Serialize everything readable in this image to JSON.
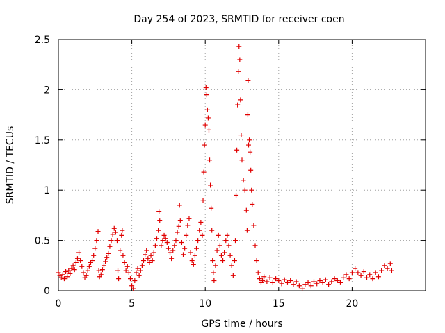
{
  "chart_data": {
    "type": "scatter",
    "title": "Day 254 of 2023, SRMTID for receiver coen",
    "xlabel": "GPS time / hours",
    "ylabel": "SRMTID / TECUs",
    "xlim": [
      0,
      25
    ],
    "ylim": [
      0,
      2.5
    ],
    "xticks": [
      0,
      5,
      10,
      15,
      20
    ],
    "xtick_labels": [
      "0",
      "5",
      "10",
      "15",
      "20"
    ],
    "yticks": [
      0,
      0.5,
      1,
      1.5,
      2,
      2.5
    ],
    "ytick_labels": [
      "0",
      "0.5",
      "1",
      "1.5",
      "2",
      "2.5"
    ],
    "grid": true,
    "marker": "+",
    "series": [
      {
        "name": "SRMTID",
        "color": "#e00000",
        "points": [
          [
            0.0,
            0.18
          ],
          [
            0.1,
            0.15
          ],
          [
            0.2,
            0.13
          ],
          [
            0.3,
            0.16
          ],
          [
            0.4,
            0.12
          ],
          [
            0.5,
            0.19
          ],
          [
            0.6,
            0.14
          ],
          [
            0.7,
            0.2
          ],
          [
            0.8,
            0.17
          ],
          [
            0.9,
            0.22
          ],
          [
            1.0,
            0.25
          ],
          [
            1.1,
            0.21
          ],
          [
            1.2,
            0.28
          ],
          [
            1.3,
            0.32
          ],
          [
            1.4,
            0.38
          ],
          [
            1.5,
            0.3
          ],
          [
            1.6,
            0.24
          ],
          [
            1.7,
            0.18
          ],
          [
            1.8,
            0.13
          ],
          [
            1.9,
            0.15
          ],
          [
            2.0,
            0.2
          ],
          [
            2.1,
            0.24
          ],
          [
            2.2,
            0.28
          ],
          [
            2.3,
            0.3
          ],
          [
            2.4,
            0.35
          ],
          [
            2.5,
            0.42
          ],
          [
            2.6,
            0.5
          ],
          [
            2.7,
            0.59
          ],
          [
            2.75,
            0.2
          ],
          [
            2.8,
            0.14
          ],
          [
            2.9,
            0.16
          ],
          [
            3.0,
            0.21
          ],
          [
            3.1,
            0.25
          ],
          [
            3.2,
            0.29
          ],
          [
            3.3,
            0.33
          ],
          [
            3.4,
            0.37
          ],
          [
            3.5,
            0.44
          ],
          [
            3.6,
            0.5
          ],
          [
            3.7,
            0.56
          ],
          [
            3.8,
            0.62
          ],
          [
            3.9,
            0.58
          ],
          [
            4.0,
            0.5
          ],
          [
            4.05,
            0.2
          ],
          [
            4.1,
            0.12
          ],
          [
            4.2,
            0.4
          ],
          [
            4.3,
            0.55
          ],
          [
            4.35,
            0.6
          ],
          [
            4.4,
            0.35
          ],
          [
            4.5,
            0.28
          ],
          [
            4.6,
            0.2
          ],
          [
            4.7,
            0.24
          ],
          [
            4.8,
            0.18
          ],
          [
            4.9,
            0.12
          ],
          [
            5.0,
            0.05
          ],
          [
            5.1,
            0.02
          ],
          [
            5.2,
            0.1
          ],
          [
            5.3,
            0.18
          ],
          [
            5.4,
            0.22
          ],
          [
            5.5,
            0.15
          ],
          [
            5.6,
            0.2
          ],
          [
            5.7,
            0.25
          ],
          [
            5.8,
            0.3
          ],
          [
            5.9,
            0.36
          ],
          [
            6.0,
            0.4
          ],
          [
            6.1,
            0.32
          ],
          [
            6.2,
            0.28
          ],
          [
            6.3,
            0.35
          ],
          [
            6.4,
            0.3
          ],
          [
            6.5,
            0.38
          ],
          [
            6.6,
            0.45
          ],
          [
            6.7,
            0.52
          ],
          [
            6.8,
            0.6
          ],
          [
            6.85,
            0.79
          ],
          [
            6.9,
            0.7
          ],
          [
            7.0,
            0.45
          ],
          [
            7.1,
            0.5
          ],
          [
            7.2,
            0.55
          ],
          [
            7.3,
            0.52
          ],
          [
            7.4,
            0.48
          ],
          [
            7.5,
            0.42
          ],
          [
            7.6,
            0.38
          ],
          [
            7.7,
            0.32
          ],
          [
            7.8,
            0.4
          ],
          [
            7.9,
            0.45
          ],
          [
            8.0,
            0.5
          ],
          [
            8.1,
            0.58
          ],
          [
            8.2,
            0.64
          ],
          [
            8.25,
            0.85
          ],
          [
            8.3,
            0.7
          ],
          [
            8.4,
            0.48
          ],
          [
            8.5,
            0.36
          ],
          [
            8.6,
            0.42
          ],
          [
            8.7,
            0.55
          ],
          [
            8.8,
            0.65
          ],
          [
            8.9,
            0.72
          ],
          [
            9.0,
            0.38
          ],
          [
            9.1,
            0.3
          ],
          [
            9.2,
            0.26
          ],
          [
            9.3,
            0.35
          ],
          [
            9.4,
            0.42
          ],
          [
            9.5,
            0.5
          ],
          [
            9.6,
            0.6
          ],
          [
            9.7,
            0.68
          ],
          [
            9.8,
            0.55
          ],
          [
            9.85,
            0.9
          ],
          [
            9.9,
            1.18
          ],
          [
            9.95,
            1.45
          ],
          [
            10.0,
            1.65
          ],
          [
            10.05,
            2.02
          ],
          [
            10.1,
            1.95
          ],
          [
            10.15,
            1.8
          ],
          [
            10.2,
            1.72
          ],
          [
            10.25,
            1.6
          ],
          [
            10.3,
            1.3
          ],
          [
            10.35,
            1.05
          ],
          [
            10.4,
            0.82
          ],
          [
            10.45,
            0.6
          ],
          [
            10.5,
            0.3
          ],
          [
            10.55,
            0.18
          ],
          [
            10.6,
            0.1
          ],
          [
            10.7,
            0.25
          ],
          [
            10.8,
            0.4
          ],
          [
            10.9,
            0.55
          ],
          [
            11.0,
            0.45
          ],
          [
            11.1,
            0.35
          ],
          [
            11.2,
            0.3
          ],
          [
            11.3,
            0.38
          ],
          [
            11.4,
            0.5
          ],
          [
            11.5,
            0.55
          ],
          [
            11.6,
            0.45
          ],
          [
            11.7,
            0.35
          ],
          [
            11.8,
            0.25
          ],
          [
            11.9,
            0.15
          ],
          [
            12.0,
            0.3
          ],
          [
            12.05,
            0.5
          ],
          [
            12.1,
            0.95
          ],
          [
            12.15,
            1.4
          ],
          [
            12.2,
            1.85
          ],
          [
            12.25,
            2.18
          ],
          [
            12.3,
            2.43
          ],
          [
            12.35,
            2.3
          ],
          [
            12.4,
            1.9
          ],
          [
            12.45,
            1.55
          ],
          [
            12.5,
            1.3
          ],
          [
            12.6,
            1.1
          ],
          [
            12.7,
            1.0
          ],
          [
            12.8,
            0.8
          ],
          [
            12.85,
            0.6
          ],
          [
            12.9,
            1.75
          ],
          [
            12.92,
            2.09
          ],
          [
            12.95,
            1.45
          ],
          [
            13.0,
            1.5
          ],
          [
            13.05,
            1.38
          ],
          [
            13.1,
            1.2
          ],
          [
            13.15,
            1.0
          ],
          [
            13.2,
            0.86
          ],
          [
            13.3,
            0.65
          ],
          [
            13.4,
            0.45
          ],
          [
            13.5,
            0.3
          ],
          [
            13.6,
            0.18
          ],
          [
            13.7,
            0.12
          ],
          [
            13.8,
            0.08
          ],
          [
            13.9,
            0.1
          ],
          [
            14.0,
            0.14
          ],
          [
            14.2,
            0.09
          ],
          [
            14.4,
            0.13
          ],
          [
            14.6,
            0.08
          ],
          [
            14.8,
            0.12
          ],
          [
            15.0,
            0.1
          ],
          [
            15.2,
            0.07
          ],
          [
            15.4,
            0.11
          ],
          [
            15.6,
            0.08
          ],
          [
            15.8,
            0.1
          ],
          [
            16.0,
            0.06
          ],
          [
            16.2,
            0.09
          ],
          [
            16.4,
            0.05
          ],
          [
            16.6,
            0.02
          ],
          [
            16.8,
            0.06
          ],
          [
            17.0,
            0.08
          ],
          [
            17.2,
            0.05
          ],
          [
            17.4,
            0.09
          ],
          [
            17.6,
            0.07
          ],
          [
            17.8,
            0.1
          ],
          [
            18.0,
            0.08
          ],
          [
            18.2,
            0.11
          ],
          [
            18.4,
            0.06
          ],
          [
            18.6,
            0.09
          ],
          [
            18.8,
            0.12
          ],
          [
            19.0,
            0.1
          ],
          [
            19.2,
            0.08
          ],
          [
            19.4,
            0.13
          ],
          [
            19.6,
            0.16
          ],
          [
            19.8,
            0.12
          ],
          [
            20.0,
            0.18
          ],
          [
            20.2,
            0.22
          ],
          [
            20.4,
            0.18
          ],
          [
            20.6,
            0.15
          ],
          [
            20.8,
            0.19
          ],
          [
            21.0,
            0.13
          ],
          [
            21.2,
            0.16
          ],
          [
            21.4,
            0.12
          ],
          [
            21.6,
            0.18
          ],
          [
            21.8,
            0.14
          ],
          [
            22.0,
            0.2
          ],
          [
            22.2,
            0.25
          ],
          [
            22.4,
            0.22
          ],
          [
            22.6,
            0.27
          ],
          [
            22.7,
            0.2
          ]
        ]
      }
    ]
  }
}
